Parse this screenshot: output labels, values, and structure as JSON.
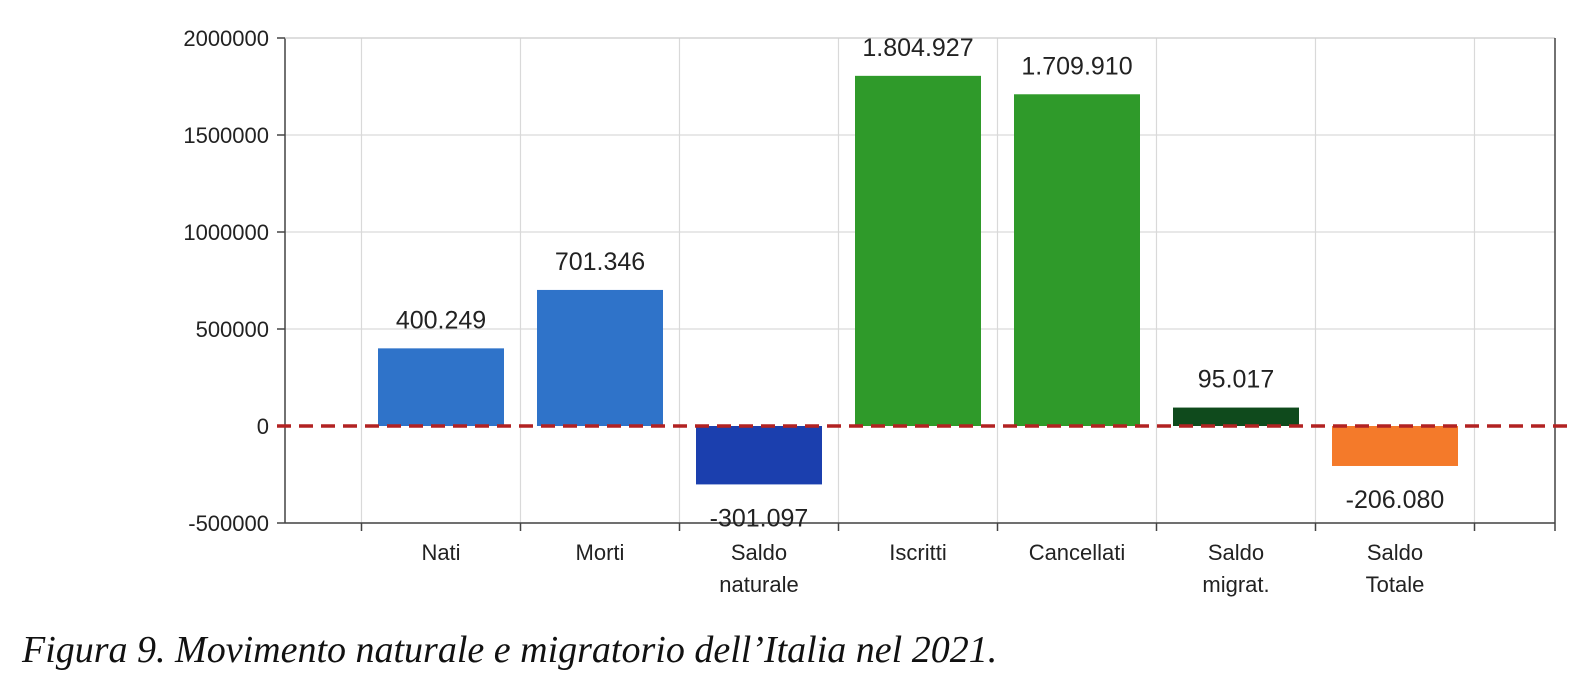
{
  "caption": "Figura 9. Movimento naturale e migratorio dell’Italia nel 2021.",
  "chart_data": {
    "type": "bar",
    "title": "",
    "xlabel": "",
    "ylabel": "",
    "ylim": [
      -500000,
      2000000
    ],
    "yticks": [
      -500000,
      0,
      500000,
      1000000,
      1500000,
      2000000
    ],
    "ytick_labels": [
      "-500000",
      "0",
      "500000",
      "1000000",
      "1500000",
      "2000000"
    ],
    "grid": true,
    "legend": "none",
    "zero_line_color": "#b22222",
    "categories": [
      [
        "Nati"
      ],
      [
        "Morti"
      ],
      [
        "Saldo",
        "naturale"
      ],
      [
        "Iscritti"
      ],
      [
        "Cancellati"
      ],
      [
        "Saldo",
        "migrat."
      ],
      [
        "Saldo",
        "Totale"
      ]
    ],
    "values": [
      400249,
      701346,
      -301097,
      1804927,
      1709910,
      95017,
      -206080
    ],
    "data_labels": [
      "400.249",
      "701.346",
      "-301.097",
      "1.804.927",
      "1.709.910",
      "95.017",
      "-206.080"
    ],
    "colors": [
      "#2f73c9",
      "#2f73c9",
      "#1b3fae",
      "#2f9a2a",
      "#2f9a2a",
      "#0f4a1c",
      "#f47a2a"
    ]
  }
}
